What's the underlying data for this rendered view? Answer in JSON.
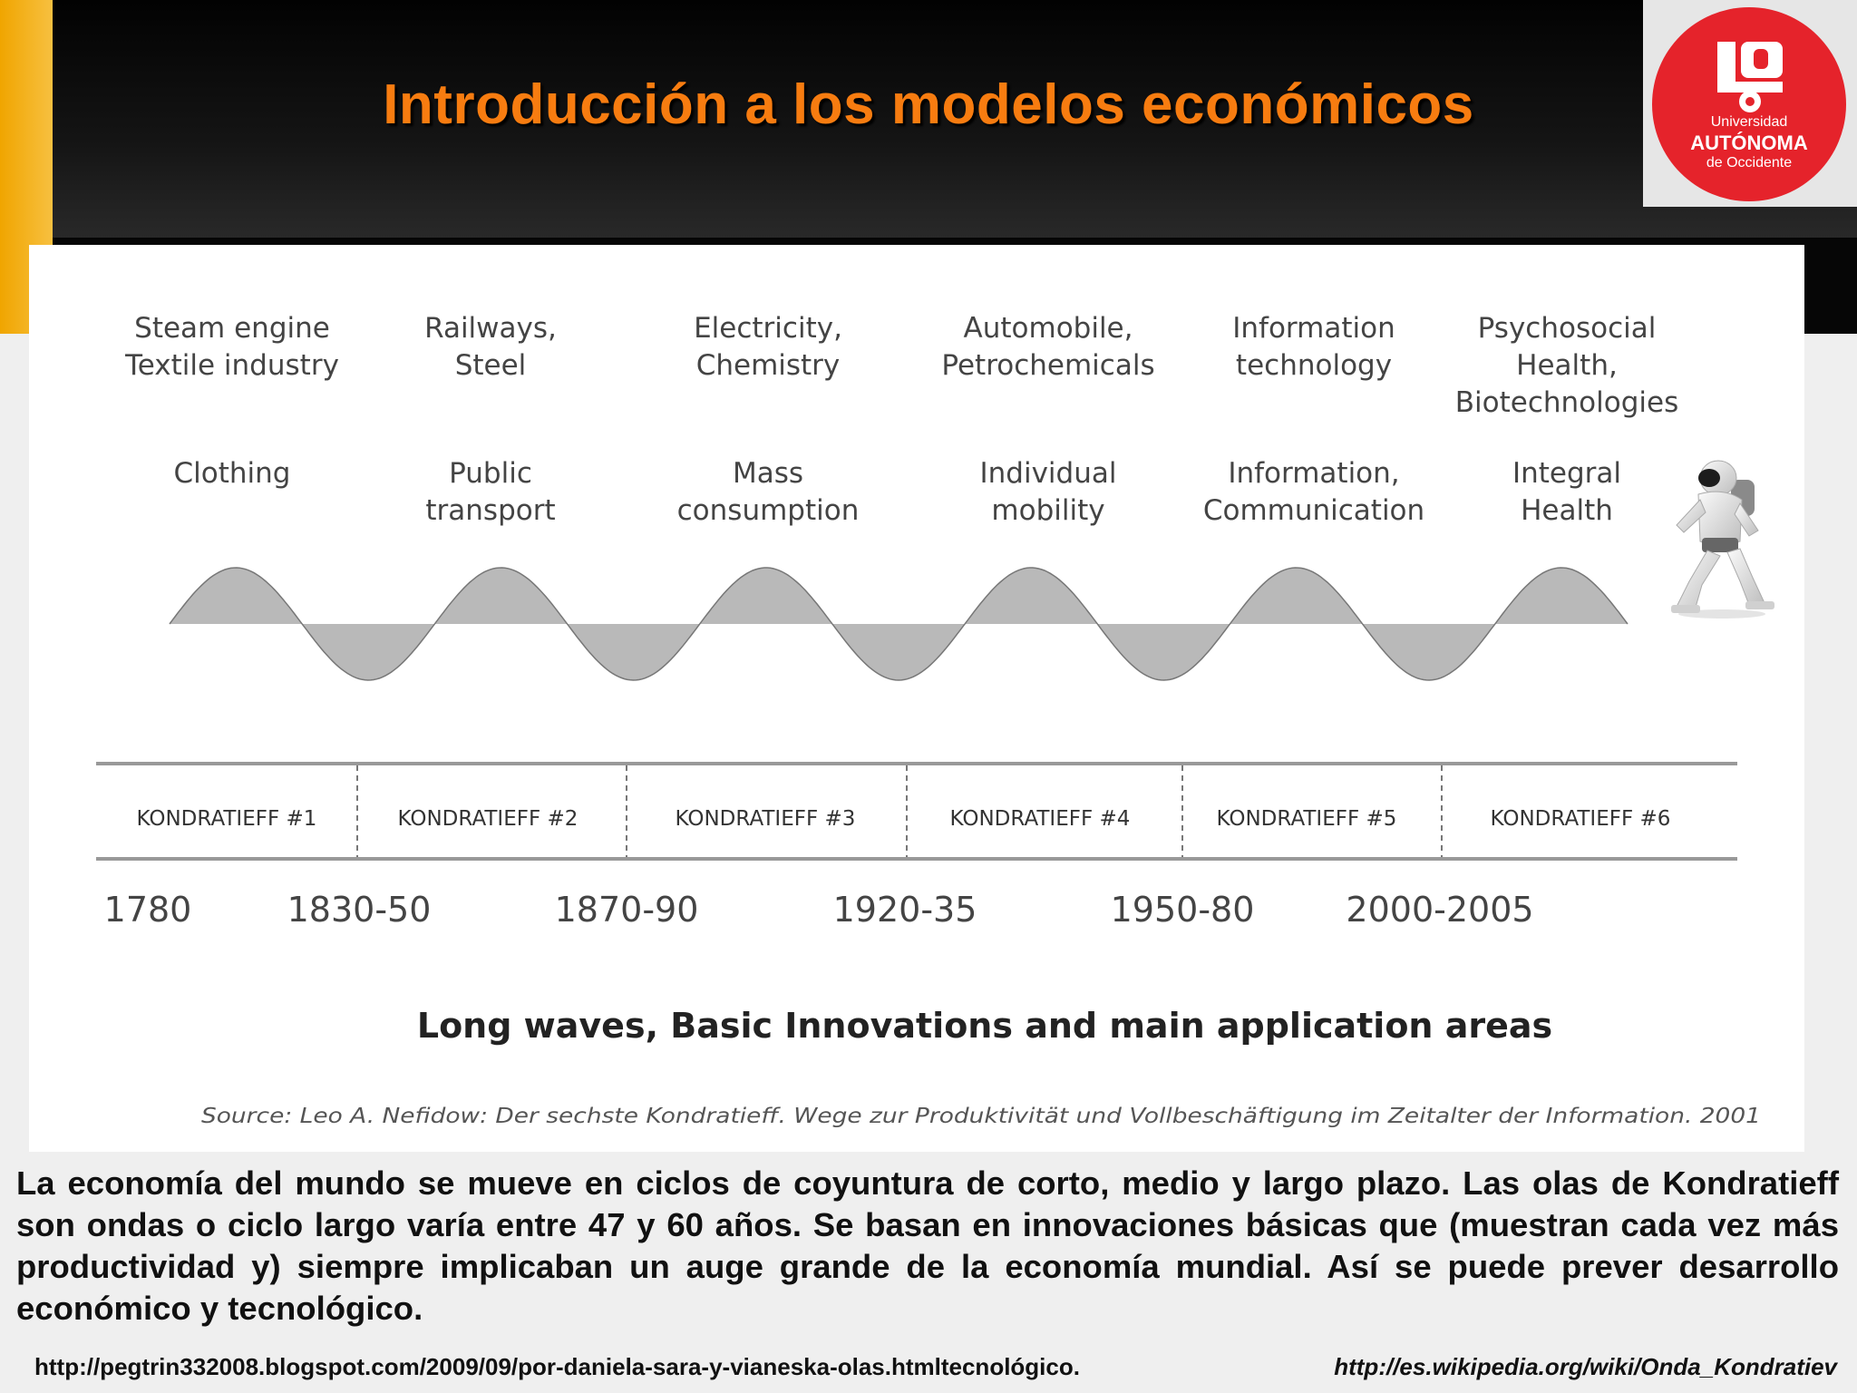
{
  "title": "Introducción a los modelos económicos",
  "logo": {
    "line1": "Universidad",
    "line2": "AUTÓNOMA",
    "line3": "de Occidente",
    "icon": "uao-logo-icon",
    "color": "#e5232b"
  },
  "figure": {
    "innovations": [
      [
        "Steam engine",
        "Textile industry"
      ],
      [
        "Railways,",
        "Steel"
      ],
      [
        "Electricity,",
        "Chemistry"
      ],
      [
        "Automobile,",
        "Petrochemicals"
      ],
      [
        "Information",
        "technology"
      ],
      [
        "Psychosocial",
        "Health,",
        "Biotechnologies"
      ]
    ],
    "applications": [
      [
        "Clothing"
      ],
      [
        "Public",
        "transport"
      ],
      [
        "Mass",
        "consumption"
      ],
      [
        "Individual",
        "mobility"
      ],
      [
        "Information,",
        "Communication"
      ],
      [
        "Integral",
        "Health"
      ]
    ],
    "kondratieff": [
      "KONDRATIEFF #1",
      "KONDRATIEFF #2",
      "KONDRATIEFF #3",
      "KONDRATIEFF #4",
      "KONDRATIEFF #5",
      "KONDRATIEFF #6"
    ],
    "years": [
      "1780",
      "1830-50",
      "1870-90",
      "1920-35",
      "1950-80",
      "2000-2005"
    ],
    "caption": "Long waves, Basic Innovations and main application areas",
    "source": "Source: Leo A. Nefidow: Der sechste Kondratieff. Wege zur Produktivität und Vollbeschäftigung im Zeitalter der Information. 2001",
    "wave_cycles": 5.5,
    "wave_fill": "#b9b9b9",
    "robot_image": "robot-icon"
  },
  "body": "La economía del mundo se mueve en ciclos de coyuntura de corto, medio y largo plazo. Las olas de Kondratieff son ondas o ciclo largo varía entre 47 y 60 años. Se basan en innovaciones básicas que (muestran cada vez más productividad y) siempre implicaban un auge grande de la economía mundial. Así se puede prever desarrollo económico y tecnológico.",
  "links": {
    "left": "http://pegtrin332008.blogspot.com/2009/09/por-daniela-sara-y-vianeska-olas.htmltecnológico.",
    "right": "http://es.wikipedia.org/wiki/Onda_Kondratiev"
  }
}
